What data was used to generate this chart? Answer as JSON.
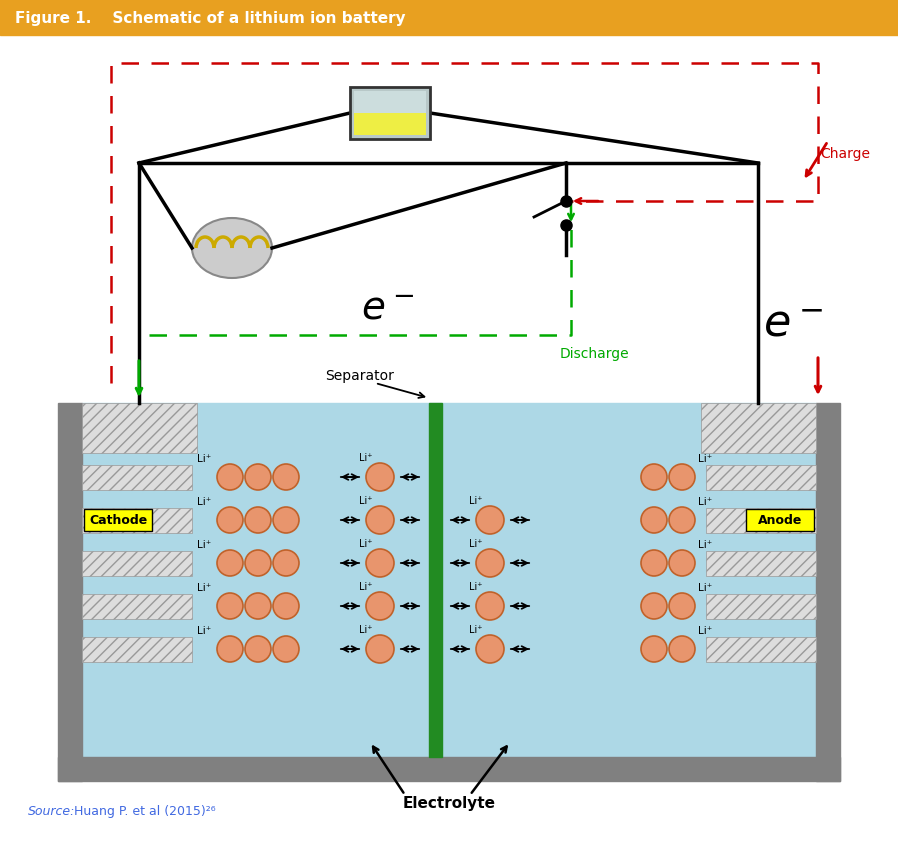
{
  "title": "Figure 1.    Schematic of a lithium ion battery",
  "title_bg_color": "#E8A020",
  "title_text_color": "#FFFFFF",
  "source_italic": "Source:",
  "source_normal": " Huang P. et al (2015)²⁶",
  "fig_bg_color": "#FFFFFF",
  "battery_bg_color": "#ADD8E6",
  "tank_color": "#808080",
  "separator_color": "#228B22",
  "ball_color": "#E8956D",
  "ball_edge_color": "#C0622A",
  "charge_color": "#CC0000",
  "discharge_color": "#00AA00",
  "wire_color": "#000000",
  "coil_color": "#CCAA00",
  "source_color": "#4169E1",
  "bat_top_color": "#B8CCCC",
  "bat_bot_color": "#EEEE44"
}
